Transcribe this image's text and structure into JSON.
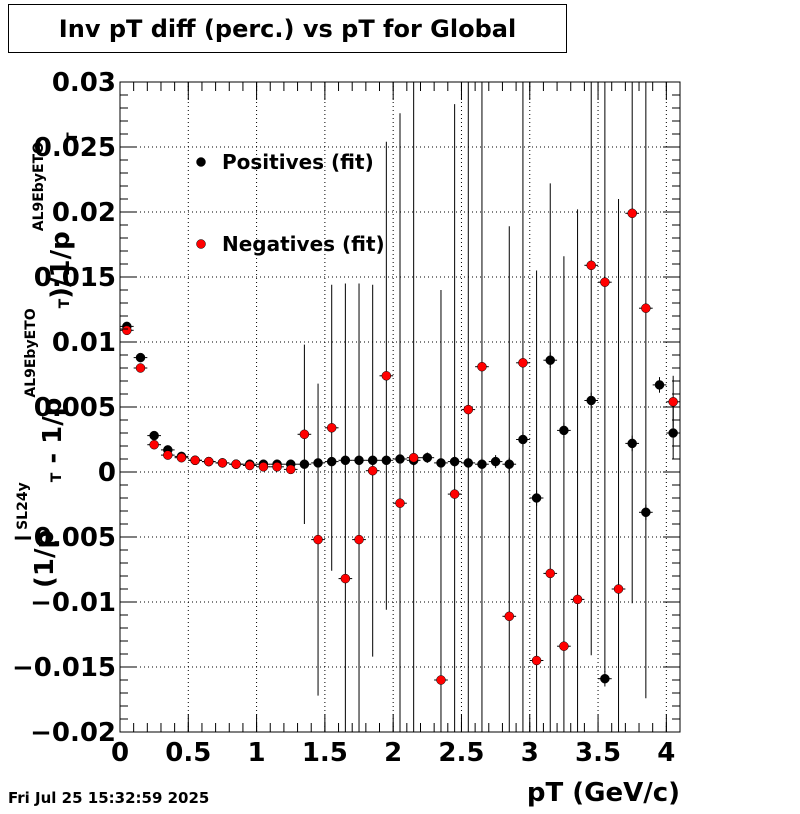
{
  "title": "Inv pT diff (perc.) vs pT for Global",
  "timestamp": "Fri Jul 25 15:32:59 2025",
  "chart_data": {
    "type": "scatter",
    "title": "Inv pT diff (perc.) vs pT for Global",
    "xlabel": "pT (GeV/c)",
    "ylabel": {
      "parts": [
        {
          "text": "(1/p",
          "style": "main"
        },
        {
          "text": "SL24y",
          "style": "sup"
        },
        {
          "text": "T",
          "style": "sub"
        },
        {
          "text": " - 1/p",
          "style": "main"
        },
        {
          "text": "AL9EbyETO",
          "style": "sup"
        },
        {
          "text": "T",
          "style": "sub"
        },
        {
          "text": ")/1/p",
          "style": "main"
        },
        {
          "text": "AL9EbyETO",
          "style": "sup"
        },
        {
          "text": "T",
          "style": "sub"
        }
      ]
    },
    "xlim": [
      0,
      4.1
    ],
    "ylim": [
      -0.02,
      0.03
    ],
    "x_ticks": [
      0,
      0.5,
      1,
      1.5,
      2,
      2.5,
      3,
      3.5,
      4
    ],
    "x_tick_labels": [
      "0",
      "0.5",
      "1",
      "1.5",
      "2",
      "2.5",
      "3",
      "3.5",
      "4"
    ],
    "y_ticks": [
      -0.02,
      -0.015,
      -0.01,
      -0.005,
      0,
      0.005,
      0.01,
      0.015,
      0.02,
      0.025,
      0.03
    ],
    "y_tick_labels": [
      "−0.02",
      "−0.015",
      "−0.01",
      "−0.005",
      "0",
      "0.005",
      "0.01",
      "0.015",
      "0.02",
      "0.025",
      "0.03"
    ],
    "grid": true,
    "legend_position": "top-left",
    "series": [
      {
        "name": "Positives (fit)",
        "color": "#000000",
        "points": [
          {
            "x": 0.05,
            "y": 0.0112,
            "err": 0.0002
          },
          {
            "x": 0.15,
            "y": 0.0088,
            "err": 0.0002
          },
          {
            "x": 0.25,
            "y": 0.0028,
            "err": 0.0002
          },
          {
            "x": 0.35,
            "y": 0.0017,
            "err": 0.0002
          },
          {
            "x": 0.45,
            "y": 0.0012,
            "err": 0.0002
          },
          {
            "x": 0.55,
            "y": 0.0009,
            "err": 0.0002
          },
          {
            "x": 0.65,
            "y": 0.0008,
            "err": 0.0002
          },
          {
            "x": 0.75,
            "y": 0.0007,
            "err": 0.0002
          },
          {
            "x": 0.85,
            "y": 0.0006,
            "err": 0.0002
          },
          {
            "x": 0.95,
            "y": 0.0006,
            "err": 0.0002
          },
          {
            "x": 1.05,
            "y": 0.0006,
            "err": 0.0002
          },
          {
            "x": 1.15,
            "y": 0.0006,
            "err": 0.0002
          },
          {
            "x": 1.25,
            "y": 0.0006,
            "err": 0.0002
          },
          {
            "x": 1.35,
            "y": 0.0006,
            "err": 0.0002
          },
          {
            "x": 1.45,
            "y": 0.0007,
            "err": 0.0003
          },
          {
            "x": 1.55,
            "y": 0.0008,
            "err": 0.0003
          },
          {
            "x": 1.65,
            "y": 0.0009,
            "err": 0.0003
          },
          {
            "x": 1.75,
            "y": 0.0009,
            "err": 0.0003
          },
          {
            "x": 1.85,
            "y": 0.0009,
            "err": 0.0003
          },
          {
            "x": 1.95,
            "y": 0.0009,
            "err": 0.0003
          },
          {
            "x": 2.05,
            "y": 0.001,
            "err": 0.0004
          },
          {
            "x": 2.15,
            "y": 0.0009,
            "err": 0.0004
          },
          {
            "x": 2.25,
            "y": 0.0011,
            "err": 0.0004
          },
          {
            "x": 2.35,
            "y": 0.0007,
            "err": 0.0004
          },
          {
            "x": 2.45,
            "y": 0.0008,
            "err": 0.0004
          },
          {
            "x": 2.55,
            "y": 0.0007,
            "err": 0.0004
          },
          {
            "x": 2.65,
            "y": 0.0006,
            "err": 0.0005
          },
          {
            "x": 2.75,
            "y": 0.0008,
            "err": 0.0005
          },
          {
            "x": 2.85,
            "y": 0.0006,
            "err": 0.0005
          },
          {
            "x": 2.95,
            "y": 0.0025,
            "err": 0.0006
          },
          {
            "x": 3.05,
            "y": -0.002,
            "err": 0.0006
          },
          {
            "x": 3.15,
            "y": 0.0086,
            "err": 0.0006
          },
          {
            "x": 3.25,
            "y": 0.0032,
            "err": 0.0006
          },
          {
            "x": 3.45,
            "y": 0.0055,
            "err": 0.0006
          },
          {
            "x": 3.55,
            "y": -0.0159,
            "err": 0.0006
          },
          {
            "x": 3.75,
            "y": 0.0022,
            "err": 0.0006
          },
          {
            "x": 3.85,
            "y": -0.0031,
            "err": 0.0006
          },
          {
            "x": 3.95,
            "y": 0.0067,
            "err": 0.0006
          },
          {
            "x": 4.05,
            "y": 0.003,
            "err": 0.002
          }
        ]
      },
      {
        "name": "Negatives (fit)",
        "color": "#ff0000",
        "points": [
          {
            "x": 0.05,
            "y": 0.0109,
            "err": 0.0002
          },
          {
            "x": 0.15,
            "y": 0.008,
            "err": 0.0002
          },
          {
            "x": 0.25,
            "y": 0.0021,
            "err": 0.0002
          },
          {
            "x": 0.35,
            "y": 0.0013,
            "err": 0.0002
          },
          {
            "x": 0.45,
            "y": 0.0011,
            "err": 0.0002
          },
          {
            "x": 0.55,
            "y": 0.0009,
            "err": 0.0002
          },
          {
            "x": 0.65,
            "y": 0.0008,
            "err": 0.0002
          },
          {
            "x": 0.75,
            "y": 0.0007,
            "err": 0.0002
          },
          {
            "x": 0.85,
            "y": 0.0006,
            "err": 0.0002
          },
          {
            "x": 0.95,
            "y": 0.0005,
            "err": 0.0002
          },
          {
            "x": 1.05,
            "y": 0.0004,
            "err": 0.0002
          },
          {
            "x": 1.15,
            "y": 0.0004,
            "err": 0.0002
          },
          {
            "x": 1.25,
            "y": 0.0002,
            "err": 0.0002
          },
          {
            "x": 1.35,
            "y": 0.0029,
            "err": 0.0069
          },
          {
            "x": 1.45,
            "y": -0.0052,
            "err": 0.012
          },
          {
            "x": 1.55,
            "y": 0.0034,
            "err": 0.011
          },
          {
            "x": 1.65,
            "y": -0.0082,
            "err": 0.0227
          },
          {
            "x": 1.75,
            "y": -0.0052,
            "err": 0.0197
          },
          {
            "x": 1.85,
            "y": 0.0001,
            "err": 0.0143
          },
          {
            "x": 1.95,
            "y": 0.0074,
            "err": 0.018
          },
          {
            "x": 2.05,
            "y": -0.0024,
            "err": 0.03
          },
          {
            "x": 2.15,
            "y": 0.0011,
            "err": 0.03
          },
          {
            "x": 2.35,
            "y": -0.016,
            "err": 0.03
          },
          {
            "x": 2.45,
            "y": -0.0017,
            "err": 0.03
          },
          {
            "x": 2.55,
            "y": 0.0048,
            "err": 0.03
          },
          {
            "x": 2.65,
            "y": 0.0081,
            "err": 0.03
          },
          {
            "x": 2.85,
            "y": -0.0111,
            "err": 0.03
          },
          {
            "x": 2.95,
            "y": 0.0084,
            "err": 0.03
          },
          {
            "x": 3.05,
            "y": -0.0145,
            "err": 0.03
          },
          {
            "x": 3.15,
            "y": -0.0078,
            "err": 0.03
          },
          {
            "x": 3.25,
            "y": -0.0134,
            "err": 0.03
          },
          {
            "x": 3.35,
            "y": -0.0098,
            "err": 0.03
          },
          {
            "x": 3.45,
            "y": 0.0159,
            "err": 0.03
          },
          {
            "x": 3.55,
            "y": 0.0146,
            "err": 0.03
          },
          {
            "x": 3.65,
            "y": -0.009,
            "err": 0.03
          },
          {
            "x": 3.75,
            "y": 0.0199,
            "err": 0.03
          },
          {
            "x": 3.85,
            "y": 0.0126,
            "err": 0.03
          },
          {
            "x": 4.05,
            "y": 0.0054,
            "err": 0.002
          }
        ]
      }
    ]
  }
}
